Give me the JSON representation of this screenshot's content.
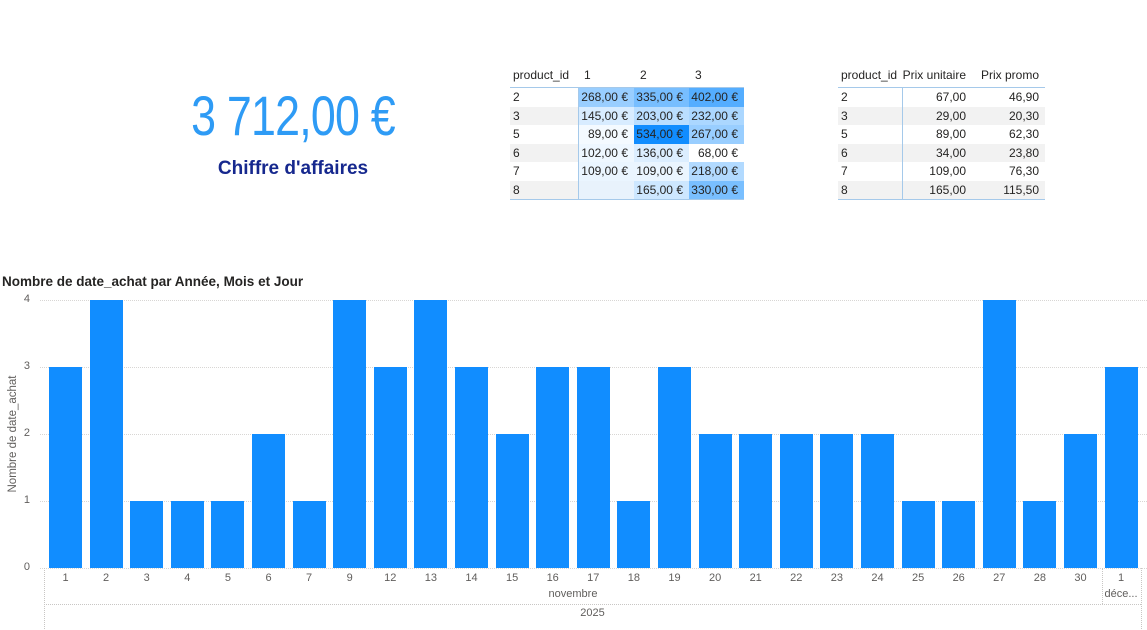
{
  "kpi": {
    "value": "3 712,00 €",
    "label": "Chiffre d'affaires",
    "value_color": "#2E9BF5",
    "label_color": "#16288E"
  },
  "matrix": {
    "corner_header": "product_id",
    "col_headers": [
      "1",
      "2",
      "3"
    ],
    "rows": [
      {
        "id": "2",
        "cells": [
          {
            "text": "268,00 €",
            "v": 268
          },
          {
            "text": "335,00 €",
            "v": 335
          },
          {
            "text": "402,00 €",
            "v": 402
          }
        ]
      },
      {
        "id": "3",
        "cells": [
          {
            "text": "145,00 €",
            "v": 145
          },
          {
            "text": "203,00 €",
            "v": 203
          },
          {
            "text": "232,00 €",
            "v": 232
          }
        ]
      },
      {
        "id": "5",
        "cells": [
          {
            "text": "89,00 €",
            "v": 89
          },
          {
            "text": "534,00 €",
            "v": 534
          },
          {
            "text": "267,00 €",
            "v": 267
          }
        ]
      },
      {
        "id": "6",
        "cells": [
          {
            "text": "102,00 €",
            "v": 102
          },
          {
            "text": "136,00 €",
            "v": 136
          },
          {
            "text": "68,00 €",
            "v": 68
          }
        ]
      },
      {
        "id": "7",
        "cells": [
          {
            "text": "109,00 €",
            "v": 109
          },
          {
            "text": "109,00 €",
            "v": 109
          },
          {
            "text": "218,00 €",
            "v": 218
          }
        ]
      },
      {
        "id": "8",
        "cells": [
          {
            "text": "",
            "v": null
          },
          {
            "text": "165,00 €",
            "v": 165
          },
          {
            "text": "330,00 €",
            "v": 330
          }
        ]
      }
    ],
    "heat": {
      "min": 68,
      "max": 534,
      "color": "#118DFF",
      "empty": "#E8F2FC"
    }
  },
  "price_table": {
    "headers": [
      "product_id",
      "Prix unitaire",
      "Prix promo"
    ],
    "rows": [
      [
        "2",
        "67,00",
        "46,90"
      ],
      [
        "3",
        "29,00",
        "20,30"
      ],
      [
        "5",
        "89,00",
        "62,30"
      ],
      [
        "6",
        "34,00",
        "23,80"
      ],
      [
        "7",
        "109,00",
        "76,30"
      ],
      [
        "8",
        "165,00",
        "115,50"
      ]
    ]
  },
  "chart_data": {
    "type": "bar",
    "title": "Nombre de date_achat par Année, Mois et Jour",
    "ylabel": "Nombre de date_achat",
    "categories": [
      "1",
      "2",
      "3",
      "4",
      "5",
      "6",
      "7",
      "9",
      "12",
      "13",
      "14",
      "15",
      "16",
      "17",
      "18",
      "19",
      "20",
      "21",
      "22",
      "23",
      "24",
      "25",
      "26",
      "27",
      "28",
      "30",
      "1"
    ],
    "values": [
      3,
      4,
      1,
      1,
      1,
      2,
      1,
      4,
      3,
      4,
      3,
      2,
      3,
      3,
      1,
      3,
      2,
      2,
      2,
      2,
      2,
      1,
      1,
      4,
      1,
      2,
      3
    ],
    "month_groups": [
      {
        "label": "novembre",
        "count": 26
      },
      {
        "label": "déce...",
        "count": 1
      }
    ],
    "year": "2025",
    "ylim": [
      0,
      4
    ],
    "yticks": [
      0,
      1,
      2,
      3,
      4
    ],
    "bar_color": "#118DFF",
    "grid": "dotted",
    "legend": "none"
  }
}
